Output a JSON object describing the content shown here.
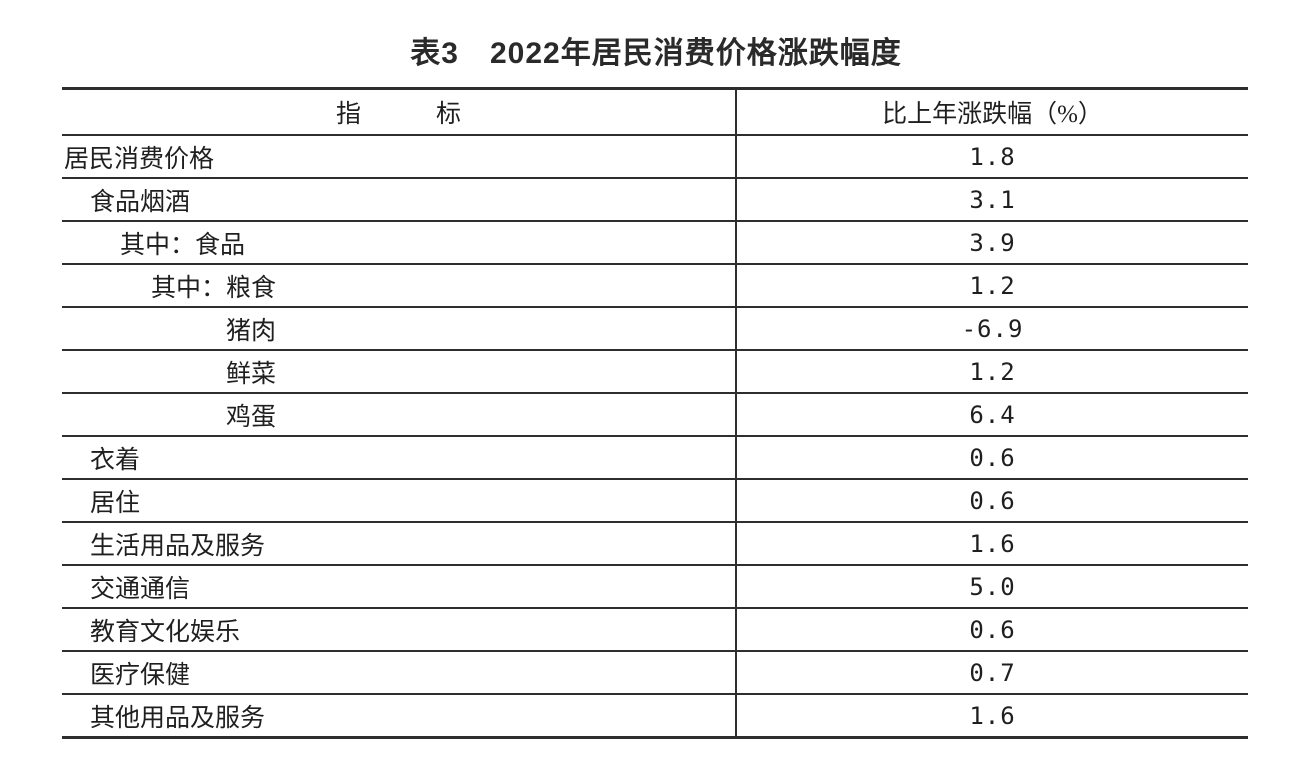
{
  "page": {
    "background_color": "#ffffff",
    "text_color": "#1f1f1f",
    "rule_color": "#2e2e2e"
  },
  "title": "表3　2022年居民消费价格涨跌幅度",
  "table": {
    "header": {
      "indicator": "指　　　标",
      "value": "比上年涨跌幅（%）"
    },
    "rows": [
      {
        "label": "居民消费价格",
        "value": "1.8",
        "indent": 0
      },
      {
        "label": "食品烟酒",
        "value": "3.1",
        "indent": 1
      },
      {
        "label": "其中：食品",
        "value": "3.9",
        "indent": 2
      },
      {
        "label": "其中：粮食",
        "value": "1.2",
        "indent": 3
      },
      {
        "label": "猪肉",
        "value": "-6.9",
        "indent": 4
      },
      {
        "label": "鲜菜",
        "value": "1.2",
        "indent": 4
      },
      {
        "label": "鸡蛋",
        "value": "6.4",
        "indent": 4
      },
      {
        "label": "衣着",
        "value": "0.6",
        "indent": 1
      },
      {
        "label": "居住",
        "value": "0.6",
        "indent": 1
      },
      {
        "label": "生活用品及服务",
        "value": "1.6",
        "indent": 1
      },
      {
        "label": "交通通信",
        "value": "5.0",
        "indent": 1
      },
      {
        "label": "教育文化娱乐",
        "value": "0.6",
        "indent": 1
      },
      {
        "label": "医疗保健",
        "value": "0.7",
        "indent": 1
      },
      {
        "label": "其他用品及服务",
        "value": "1.6",
        "indent": 1
      }
    ]
  }
}
